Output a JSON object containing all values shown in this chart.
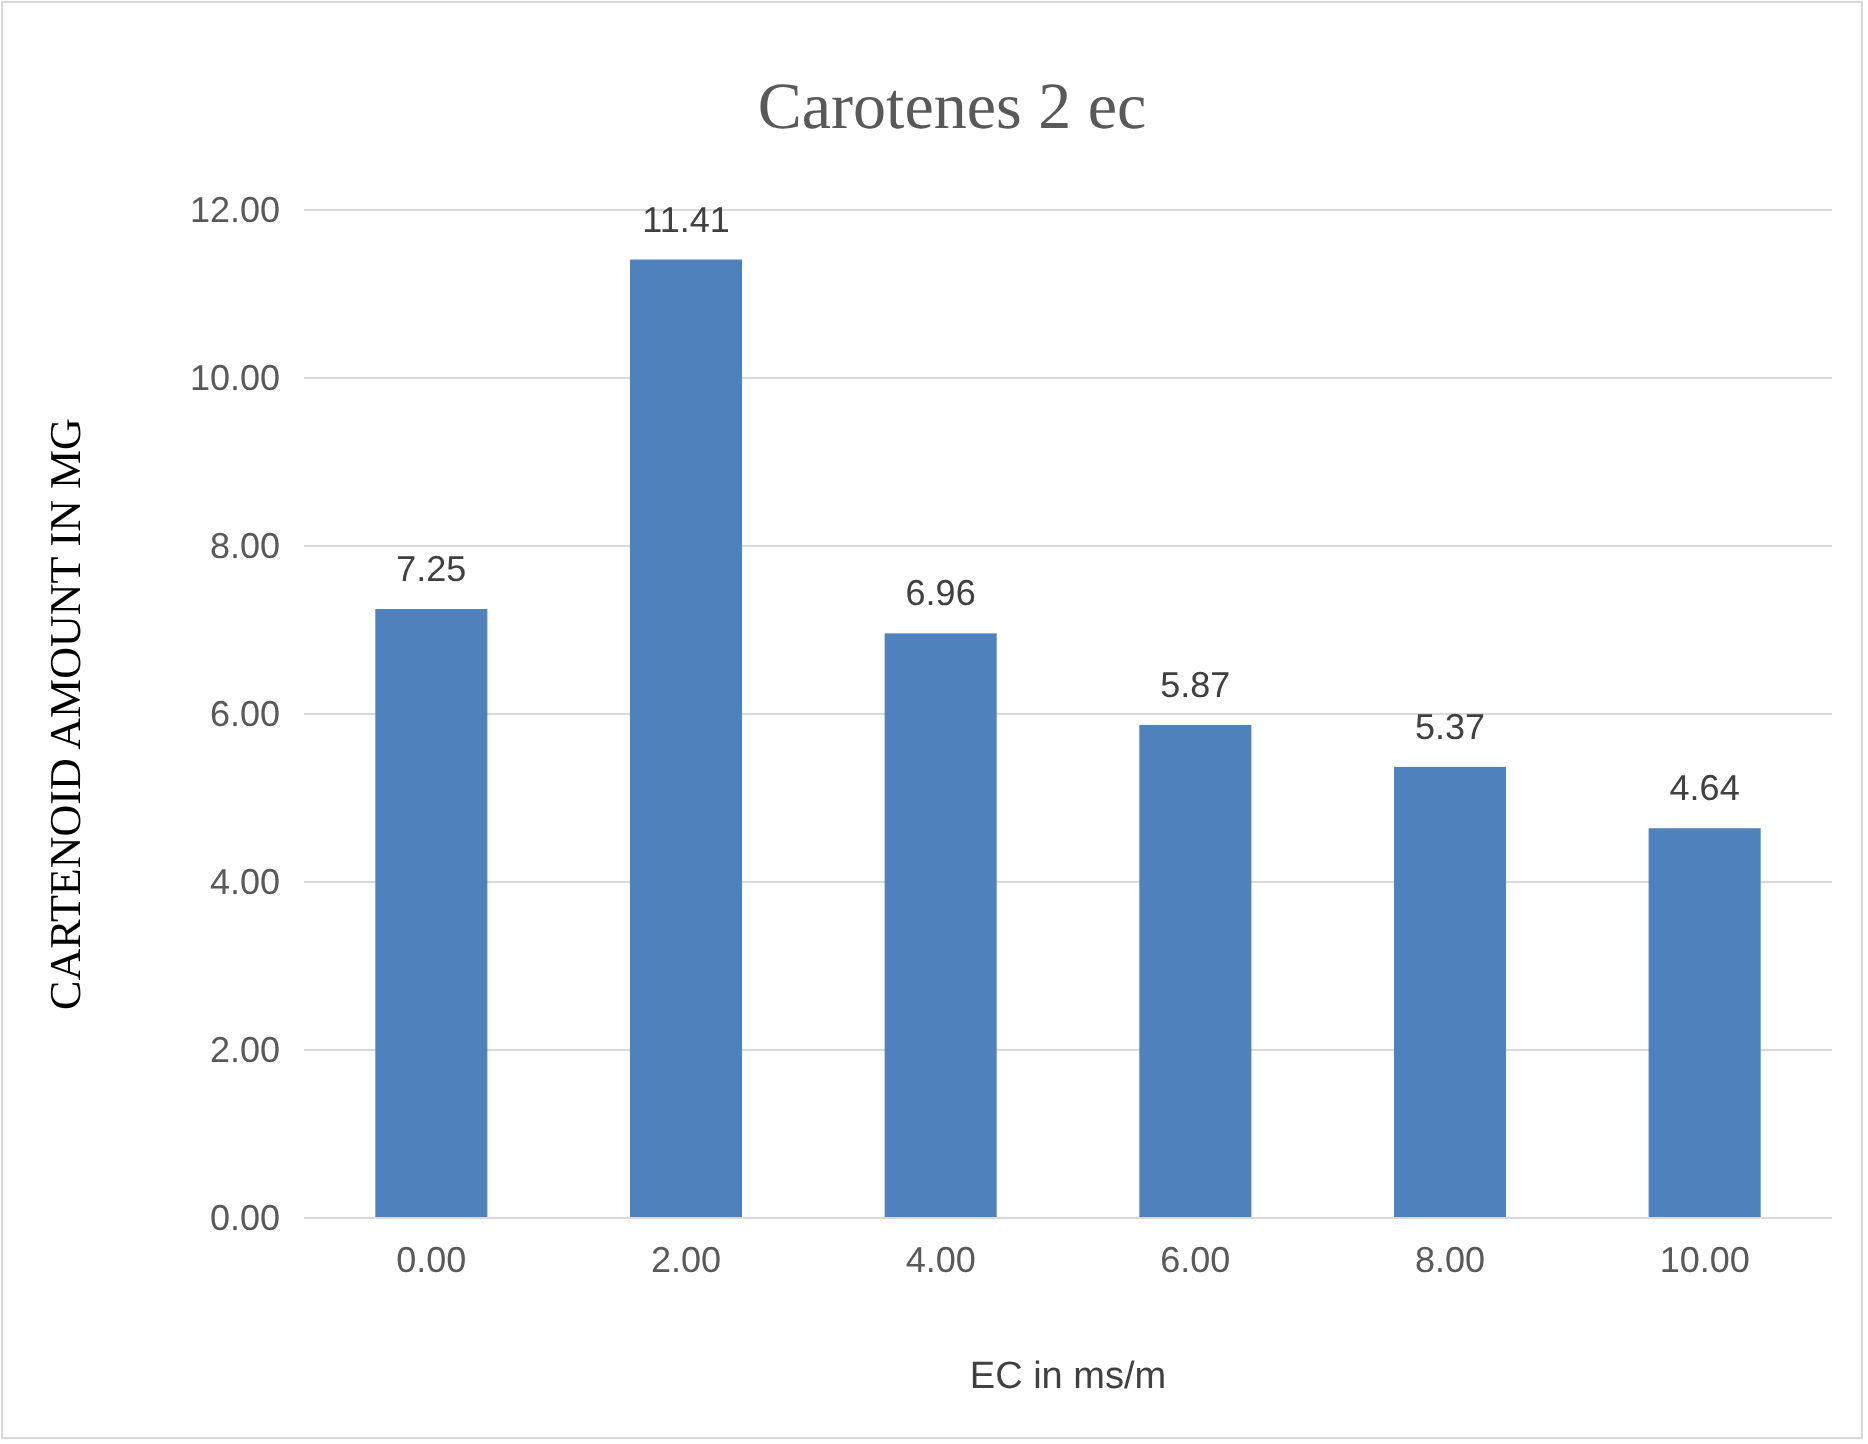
{
  "chart_data": {
    "type": "bar",
    "title": "Carotenes 2 ec",
    "xlabel": "EC in ms/m",
    "ylabel": "CARTENOID AMOUNT IN MG",
    "categories": [
      "0.00",
      "2.00",
      "4.00",
      "6.00",
      "8.00",
      "10.00"
    ],
    "values": [
      7.25,
      11.41,
      6.96,
      5.87,
      5.37,
      4.64
    ],
    "color": "#4f81bd",
    "ylim": [
      0,
      12
    ],
    "yticks": [
      {
        "value": 0,
        "label": "0.00"
      },
      {
        "value": 2,
        "label": "2.00"
      },
      {
        "value": 4,
        "label": "4.00"
      },
      {
        "value": 6,
        "label": "6.00"
      },
      {
        "value": 8,
        "label": "8.00"
      },
      {
        "value": 10,
        "label": "10.00"
      },
      {
        "value": 12,
        "label": "12.00"
      }
    ],
    "grid": "y",
    "data_labels": true
  }
}
